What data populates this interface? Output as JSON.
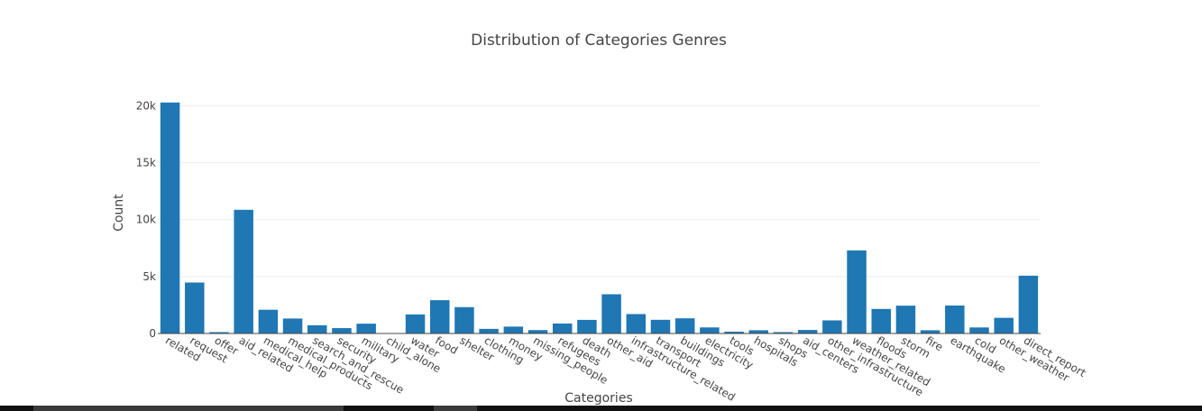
{
  "chart_data": {
    "type": "bar",
    "title": "Distribution of Categories Genres",
    "xlabel": "Categories",
    "ylabel": "Count",
    "ylim": [
      0,
      20300
    ],
    "yticks": [
      0,
      5000,
      10000,
      15000,
      20000
    ],
    "ytick_labels": [
      "0",
      "5k",
      "10k",
      "15k",
      "20k"
    ],
    "grid": true,
    "color": "#1f77b4",
    "categories": [
      "related",
      "request",
      "offer",
      "aid_related",
      "medical_help",
      "medical_products",
      "search_and_rescue",
      "security",
      "military",
      "child_alone",
      "water",
      "food",
      "shelter",
      "clothing",
      "money",
      "missing_people",
      "refugees",
      "death",
      "other_aid",
      "infrastructure_related",
      "transport",
      "buildings",
      "electricity",
      "tools",
      "hospitals",
      "shops",
      "aid_centers",
      "other_infrastructure",
      "weather_related",
      "floods",
      "storm",
      "fire",
      "earthquake",
      "cold",
      "other_weather",
      "direct_report"
    ],
    "values": [
      20282,
      4474,
      118,
      10860,
      2084,
      1313,
      724,
      471,
      860,
      0,
      1672,
      2923,
      2314,
      405,
      604,
      298,
      875,
      1194,
      3446,
      1705,
      1201,
      1333,
      532,
      159,
      283,
      120,
      309,
      1151,
      7297,
      2155,
      2443,
      282,
      2455,
      530,
      1376,
      5075
    ]
  }
}
